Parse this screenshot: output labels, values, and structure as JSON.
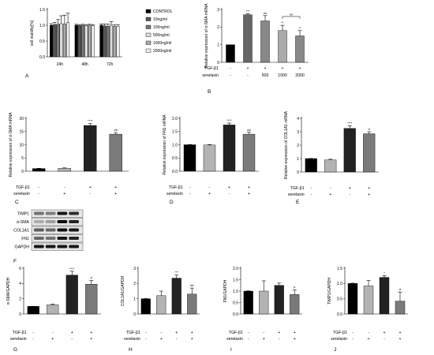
{
  "colors": {
    "bar": [
      "#000000",
      "#b3b3b3",
      "#222222",
      "#7a7a7a"
    ],
    "fg": "#000000"
  },
  "groups": [
    "TGF-β1",
    "serelaxin"
  ],
  "signs": {
    "tgf": [
      "-",
      "-",
      "+",
      "+"
    ],
    "ser": [
      "-",
      "+",
      "-",
      "+"
    ]
  },
  "chart_data": [
    {
      "id": "A",
      "type": "bar",
      "panel_label": "A",
      "ylabel": "cell viability[%]",
      "yticks": [
        "0.0",
        "0.5",
        "1.0",
        "1.5"
      ],
      "ylim": [
        0,
        1.5
      ],
      "categories": [
        "24h",
        "48h",
        "72h"
      ],
      "legend_placement": "right",
      "series": [
        {
          "name": "CONTROL",
          "color": "#000000",
          "values": [
            1.0,
            1.0,
            1.0
          ],
          "err": [
            0.05,
            0.03,
            0.04
          ]
        },
        {
          "name": "10ng/ml",
          "color": "#555555",
          "values": [
            1.02,
            0.99,
            0.98
          ],
          "err": [
            0.07,
            0.03,
            0.06
          ]
        },
        {
          "name": "100ng/ml",
          "color": "#777777",
          "values": [
            1.03,
            1.0,
            0.97
          ],
          "err": [
            0.15,
            0.03,
            0.07
          ]
        },
        {
          "name": "500ng/ml",
          "color": "#dddddd",
          "values": [
            1.05,
            0.99,
            1.0
          ],
          "err": [
            0.25,
            0.03,
            0.12
          ]
        },
        {
          "name": "1000ng/ml",
          "color": "#aaaaaa",
          "values": [
            1.04,
            1.0,
            0.96
          ],
          "err": [
            0.28,
            0.03,
            0.06
          ]
        },
        {
          "name": "2000ng/ml",
          "color": "#eeeeee",
          "values": [
            1.08,
            0.99,
            0.97
          ],
          "err": [
            0.3,
            0.03,
            0.05
          ]
        }
      ]
    },
    {
      "id": "B",
      "type": "bar",
      "panel_label": "B",
      "ylabel": "Relative expression of α-SMA mRNA",
      "yticks": [
        "0",
        "1",
        "2",
        "3"
      ],
      "ylim": [
        0,
        3
      ],
      "rows": [
        {
          "label": "TGF-β1",
          "values": [
            "-",
            "+",
            "+",
            "+",
            "+"
          ]
        },
        {
          "label": "serelaxin",
          "values": [
            "-",
            "-",
            "500",
            "1000",
            "2000"
          ]
        }
      ],
      "values": [
        1.0,
        2.7,
        2.35,
        1.8,
        1.5
      ],
      "err": [
        0.0,
        0.05,
        0.3,
        0.3,
        0.3
      ],
      "colors": [
        "#000000",
        "#666666",
        "#888888",
        "#aaaaaa",
        "#888888"
      ],
      "marks": [
        "",
        "***",
        "ns",
        "**",
        "**"
      ],
      "bracket_label": "ns"
    },
    {
      "id": "C",
      "type": "bar",
      "panel_label": "C",
      "ylabel": "Relative expression of α-SMA mRNA",
      "yticks": [
        "0",
        "5",
        "10",
        "15",
        "20"
      ],
      "ylim": [
        0,
        20
      ],
      "values": [
        1.0,
        1.1,
        17.3,
        14.0
      ],
      "err": [
        0.1,
        0.15,
        0.7,
        0.6
      ],
      "marks": [
        "",
        "",
        "****",
        "##"
      ]
    },
    {
      "id": "D",
      "type": "bar",
      "panel_label": "D",
      "ylabel": "Relative expression of FN1 mRNA",
      "yticks": [
        "0.0",
        "0.5",
        "1.0",
        "1.5",
        "2.0"
      ],
      "ylim": [
        0,
        2
      ],
      "values": [
        1.0,
        0.99,
        1.75,
        1.4
      ],
      "err": [
        0.01,
        0.02,
        0.07,
        0.07
      ],
      "marks": [
        "",
        "",
        "****",
        "##"
      ]
    },
    {
      "id": "E",
      "type": "bar",
      "panel_label": "E",
      "ylabel": "Relative expression of COL1A1 mRNA",
      "yticks": [
        "0",
        "1",
        "2",
        "3",
        "4"
      ],
      "ylim": [
        0,
        4
      ],
      "values": [
        1.0,
        0.9,
        3.25,
        2.85
      ],
      "err": [
        0.01,
        0.05,
        0.2,
        0.15
      ],
      "marks": [
        "",
        "",
        "****",
        "#"
      ]
    },
    {
      "id": "G",
      "type": "bar",
      "panel_label": "G",
      "ylabel": "α-SMA/GAPDH",
      "yticks": [
        "0",
        "2",
        "4",
        "6"
      ],
      "ylim": [
        0,
        6
      ],
      "values": [
        1.0,
        1.2,
        5.1,
        3.9
      ],
      "err": [
        0.01,
        0.1,
        0.5,
        0.5
      ],
      "marks": [
        "",
        "",
        "****",
        "#"
      ]
    },
    {
      "id": "H",
      "type": "bar",
      "panel_label": "H",
      "ylabel": "COL1A1/GAPDH",
      "yticks": [
        "0",
        "1",
        "2",
        "3"
      ],
      "ylim": [
        0,
        3
      ],
      "values": [
        1.0,
        1.2,
        2.35,
        1.3
      ],
      "err": [
        0.01,
        0.3,
        0.2,
        0.4
      ],
      "marks": [
        "",
        "",
        "***",
        "##"
      ]
    },
    {
      "id": "I",
      "type": "bar",
      "panel_label": "I",
      "ylabel": "FN1/GAPDH",
      "yticks": [
        "0.0",
        "0.5",
        "1.0",
        "1.5",
        "2.0"
      ],
      "ylim": [
        0,
        2
      ],
      "values": [
        1.0,
        1.0,
        1.25,
        0.85
      ],
      "err": [
        0.01,
        0.45,
        0.1,
        0.2
      ],
      "marks": [
        "",
        "",
        "",
        "#"
      ]
    },
    {
      "id": "J",
      "type": "bar",
      "panel_label": "J",
      "ylabel": "TIMP1/GAPDH",
      "yticks": [
        "0.0",
        "0.5",
        "1.0",
        "1.5"
      ],
      "ylim": [
        0,
        1.5
      ],
      "values": [
        1.0,
        0.92,
        1.2,
        0.42
      ],
      "err": [
        0.01,
        0.18,
        0.06,
        0.3
      ],
      "marks": [
        "",
        "",
        "*",
        "#"
      ]
    }
  ],
  "blot": {
    "panel_label": "F",
    "rows": [
      "TIMP1",
      "α-SMA",
      "COL1A1",
      "FN1",
      "GAPDH"
    ]
  }
}
